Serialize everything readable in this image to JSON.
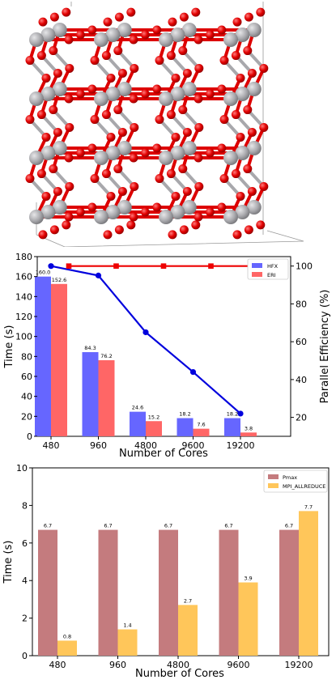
{
  "chart_data": [
    {
      "type": "bar",
      "categories": [
        "480",
        "960",
        "4800",
        "9600",
        "19200"
      ],
      "series": [
        {
          "name": "HFX",
          "values": [
            160.0,
            84.3,
            24.6,
            18.2,
            18.2
          ],
          "color": "#6666ff"
        },
        {
          "name": "ERI",
          "values": [
            152.6,
            76.2,
            15.2,
            7.6,
            3.8
          ],
          "color": "#ff6666"
        }
      ],
      "data_labels": {
        "HFX": [
          "160.0",
          "84.3",
          "24.6",
          "18.2",
          "18.2"
        ],
        "ERI": [
          "152.6",
          "76.2",
          "15.2",
          "7.6",
          "3.8"
        ]
      },
      "secondary_series": [
        {
          "values": [
            100,
            95,
            65,
            44,
            22
          ],
          "color": "#0000dd",
          "marker": "circle",
          "axis": "right"
        },
        {
          "values": [
            100,
            100,
            100,
            100,
            100
          ],
          "color": "#ee0000",
          "marker": "square",
          "axis": "right"
        }
      ],
      "xlabel": "Number of Cores",
      "ylabel": "Time (s)",
      "y2label": "Parallel Efficiency (%)",
      "ylim": [
        0,
        180
      ],
      "y2lim": [
        10,
        105
      ],
      "yticks": [
        "0",
        "20",
        "40",
        "60",
        "80",
        "100",
        "120",
        "140",
        "160",
        "180"
      ],
      "y2ticks": [
        "20",
        "40",
        "60",
        "80",
        "100"
      ],
      "legend": "top-right"
    },
    {
      "type": "bar",
      "categories": [
        "480",
        "960",
        "4800",
        "9600",
        "19200"
      ],
      "series": [
        {
          "name": "Pmax",
          "values": [
            6.7,
            6.7,
            6.7,
            6.7,
            6.7
          ],
          "color": "#c47b7e"
        },
        {
          "name": "MPI_ALLREDUCE",
          "values": [
            0.8,
            1.4,
            2.7,
            3.9,
            7.7
          ],
          "color": "#ffc65a"
        }
      ],
      "data_labels": {
        "Pmax": [
          "6.7",
          "6.7",
          "6.7",
          "6.7",
          "6.7"
        ],
        "MPI_ALLREDUCE": [
          "0.8",
          "1.4",
          "2.7",
          "3.9",
          "7.7"
        ]
      },
      "xlabel": "Number of Cores",
      "ylabel": "Time (s)",
      "ylim": [
        0,
        10
      ],
      "yticks": [
        "0",
        "2",
        "4",
        "6",
        "8",
        "10"
      ],
      "legend": "top-right"
    }
  ],
  "structure": {
    "atom_colors": {
      "metal": "#b0b0b4",
      "oxygen": "#e80000",
      "bond_metal": "#a8a8ac",
      "bond_oxygen": "#dd0000"
    }
  }
}
